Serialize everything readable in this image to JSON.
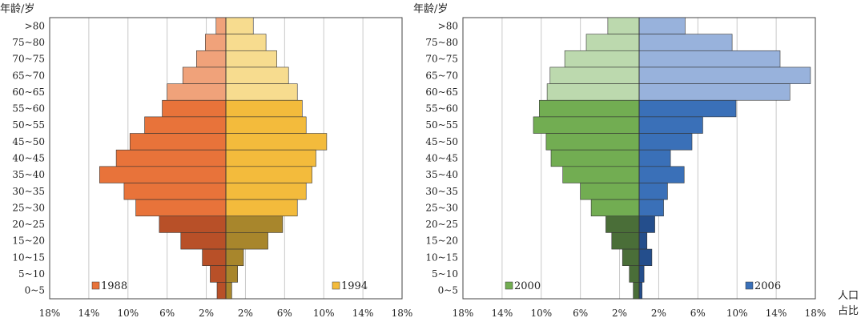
{
  "unit_label_line1": "人口",
  "unit_label_line2": "占比",
  "chart_data": [
    {
      "type": "bar",
      "orientation": "horizontal-population-pyramid",
      "ylabel": "年龄/岁",
      "categories": [
        ">80",
        "75~80",
        "70~75",
        "65~70",
        "60~65",
        "55~60",
        "50~55",
        "45~50",
        "40~45",
        "35~40",
        "30~35",
        "25~30",
        "20~25",
        "15~20",
        "10~15",
        "5~10",
        "0~5"
      ],
      "xlim": [
        -18,
        18
      ],
      "x_ticks": [
        "18%",
        "14%",
        "10%",
        "6%",
        "2%",
        "2%",
        "6%",
        "10%",
        "14%",
        "18%"
      ],
      "grid": true,
      "series": [
        {
          "name": "1988",
          "side": "left",
          "legend_color": "#e8733a",
          "values": [
            1.0,
            2.1,
            3.0,
            4.4,
            6.0,
            6.5,
            8.3,
            9.8,
            11.2,
            12.9,
            10.4,
            9.2,
            6.8,
            4.6,
            2.4,
            1.6,
            0.9
          ],
          "colors": [
            "#f0a27a",
            "#f0a27a",
            "#f0a27a",
            "#f0a27a",
            "#f0a27a",
            "#e8733a",
            "#e8733a",
            "#e8733a",
            "#e8733a",
            "#e8733a",
            "#e8733a",
            "#e8733a",
            "#b85028",
            "#b85028",
            "#b85028",
            "#b85028",
            "#b85028"
          ]
        },
        {
          "name": "1994",
          "side": "right",
          "legend_color": "#f3bb3c",
          "values": [
            2.8,
            4.1,
            5.2,
            6.4,
            7.3,
            7.8,
            8.2,
            10.3,
            9.2,
            8.8,
            8.2,
            7.3,
            5.8,
            4.3,
            1.8,
            1.2,
            0.6
          ],
          "colors": [
            "#f7dc8f",
            "#f7dc8f",
            "#f7dc8f",
            "#f7dc8f",
            "#f7dc8f",
            "#f3bb3c",
            "#f3bb3c",
            "#f3bb3c",
            "#f3bb3c",
            "#f3bb3c",
            "#f3bb3c",
            "#f3bb3c",
            "#a8862c",
            "#a8862c",
            "#a8862c",
            "#a8862c",
            "#a8862c"
          ]
        }
      ]
    },
    {
      "type": "bar",
      "orientation": "horizontal-population-pyramid",
      "ylabel": "年龄/岁",
      "categories": [
        ">80",
        "75~80",
        "70~75",
        "65~70",
        "60~65",
        "55~60",
        "50~55",
        "45~50",
        "40~45",
        "35~40",
        "30~35",
        "25~30",
        "20~25",
        "15~20",
        "10~15",
        "5~10",
        "0~5"
      ],
      "xlim": [
        -18,
        18
      ],
      "x_ticks": [
        "18%",
        "14%",
        "10%",
        "6%",
        "2%",
        "2%",
        "6%",
        "10%",
        "14%",
        "18%"
      ],
      "grid": true,
      "series": [
        {
          "name": "2000",
          "side": "left",
          "legend_color": "#72ad52",
          "values": [
            3.2,
            5.4,
            7.6,
            9.1,
            9.4,
            10.2,
            10.8,
            9.5,
            9.0,
            7.8,
            6.0,
            4.9,
            3.4,
            2.8,
            1.7,
            1.0,
            0.6
          ],
          "colors": [
            "#bcd9ae",
            "#bcd9ae",
            "#bcd9ae",
            "#bcd9ae",
            "#bcd9ae",
            "#72ad52",
            "#72ad52",
            "#72ad52",
            "#72ad52",
            "#72ad52",
            "#72ad52",
            "#72ad52",
            "#4a6e38",
            "#4a6e38",
            "#4a6e38",
            "#4a6e38",
            "#4a6e38"
          ]
        },
        {
          "name": "2006",
          "side": "right",
          "legend_color": "#3a70b8",
          "values": [
            4.7,
            9.5,
            14.4,
            17.5,
            15.4,
            9.9,
            6.5,
            5.4,
            3.2,
            4.6,
            2.9,
            2.5,
            1.6,
            0.8,
            1.3,
            0.5,
            0.3
          ],
          "colors": [
            "#98b2dc",
            "#98b2dc",
            "#98b2dc",
            "#98b2dc",
            "#98b2dc",
            "#3a70b8",
            "#3a70b8",
            "#3a70b8",
            "#3a70b8",
            "#3a70b8",
            "#3a70b8",
            "#3a70b8",
            "#244e8c",
            "#244e8c",
            "#244e8c",
            "#244e8c",
            "#244e8c"
          ]
        }
      ]
    }
  ]
}
